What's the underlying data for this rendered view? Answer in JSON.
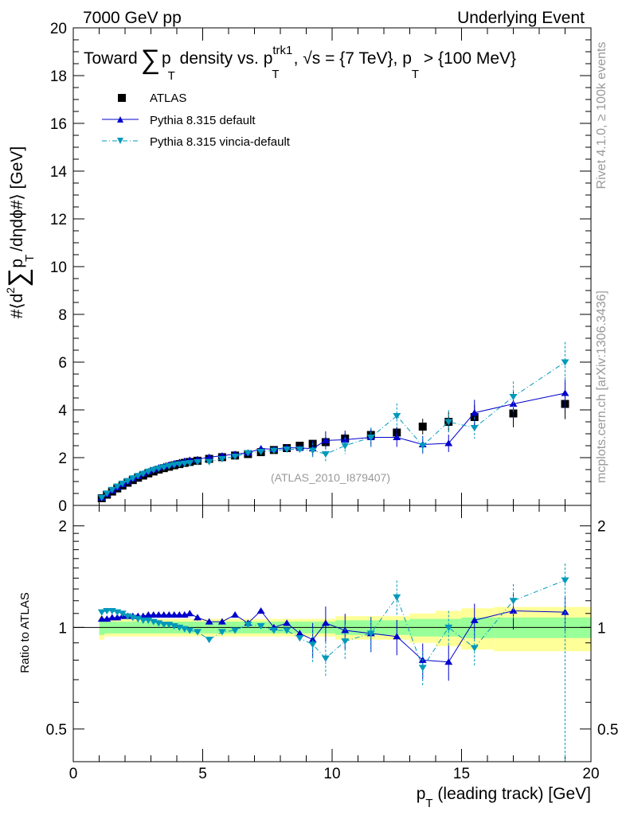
{
  "header": {
    "left": "7000 GeV pp",
    "right": "Underlying Event"
  },
  "title": {
    "prefix": "Toward",
    "sum_symbol": "∑",
    "p": "p",
    "sub_T": "T",
    "mid": " density vs. p",
    "sup_trk1": "trk1",
    "sub_T2": "T",
    "rest": ", √s = {7 TeV}, p",
    "sub_T3": "T",
    "end": " > {100 MeV}"
  },
  "ylabel": {
    "prefix": "#⟨d",
    "sup2": "2",
    "sum_symbol": "∑",
    "p": "p",
    "sub_T": "T",
    "end": "/dηdϕ#⟩ [GeV]"
  },
  "xlabel": {
    "p": "p",
    "sub_T": "T",
    "rest": " (leading track) [GeV]"
  },
  "ratio_ylabel": "Ratio to ATLAS",
  "side_text_top": "Rivet 4.1.0, ≥ 100k events",
  "side_text_bottom": "mcplots.cern.ch [arXiv:1306.3436]",
  "analysis_ref": "(ATLAS_2010_I879407)",
  "colors": {
    "atlas": "#000000",
    "pythia_default": "#0000cc",
    "pythia_vincia": "#0099bb",
    "band_inner": "#99ff99",
    "band_outer": "#ffff99"
  },
  "chart_data": {
    "type": "scatter",
    "main": {
      "xlim": [
        0,
        20
      ],
      "ylim": [
        0,
        20
      ],
      "xticks": [
        "0",
        "5",
        "10",
        "15",
        "20"
      ],
      "yticks": [
        "0",
        "2",
        "4",
        "6",
        "8",
        "10",
        "12",
        "14",
        "16",
        "18",
        "20"
      ]
    },
    "ratio": {
      "ylim": [
        0.4,
        2.3
      ],
      "yticks": [
        "0.5",
        "1",
        "2"
      ],
      "ytick_values": [
        0.5,
        1,
        2
      ]
    },
    "legend_position": "top-left",
    "x": [
      1.1,
      1.3,
      1.5,
      1.7,
      1.9,
      2.1,
      2.3,
      2.5,
      2.7,
      2.9,
      3.1,
      3.3,
      3.5,
      3.7,
      3.9,
      4.1,
      4.3,
      4.5,
      4.8,
      5.25,
      5.75,
      6.25,
      6.75,
      7.25,
      7.75,
      8.25,
      8.75,
      9.25,
      9.75,
      10.5,
      11.5,
      12.5,
      13.5,
      14.5,
      15.5,
      17.0,
      19.0
    ],
    "series": [
      {
        "name": "ATLAS",
        "marker": "square",
        "values": [
          0.3,
          0.45,
          0.58,
          0.71,
          0.83,
          0.95,
          1.06,
          1.16,
          1.25,
          1.34,
          1.42,
          1.5,
          1.56,
          1.62,
          1.68,
          1.73,
          1.78,
          1.82,
          1.87,
          1.95,
          2.02,
          2.09,
          2.15,
          2.23,
          2.32,
          2.4,
          2.5,
          2.58,
          2.65,
          2.8,
          2.95,
          3.05,
          3.3,
          3.5,
          3.7,
          3.85,
          4.25
        ],
        "band_inner": [
          0.95,
          0.96,
          0.96,
          0.96,
          0.96,
          0.96,
          0.96,
          0.96,
          0.96,
          0.96,
          0.96,
          0.96,
          0.96,
          0.96,
          0.96,
          0.96,
          0.96,
          0.96,
          0.96,
          0.96,
          0.96,
          0.96,
          0.96,
          0.96,
          0.96,
          0.96,
          0.96,
          0.96,
          0.96,
          0.95,
          0.95,
          0.95,
          0.94,
          0.94,
          0.93,
          0.93,
          0.93
        ],
        "band_outer": [
          0.92,
          0.94,
          0.94,
          0.94,
          0.94,
          0.94,
          0.94,
          0.94,
          0.94,
          0.94,
          0.94,
          0.94,
          0.94,
          0.94,
          0.94,
          0.94,
          0.94,
          0.94,
          0.94,
          0.94,
          0.94,
          0.94,
          0.94,
          0.94,
          0.94,
          0.94,
          0.94,
          0.94,
          0.94,
          0.92,
          0.92,
          0.92,
          0.9,
          0.88,
          0.86,
          0.85,
          0.85
        ]
      },
      {
        "name": "Pythia 8.315 default",
        "marker": "triangle-up",
        "line": "solid",
        "values": [
          0.32,
          0.47,
          0.62,
          0.75,
          0.88,
          1.0,
          1.12,
          1.22,
          1.33,
          1.42,
          1.5,
          1.58,
          1.64,
          1.7,
          1.76,
          1.81,
          1.86,
          1.9,
          1.93,
          2.02,
          2.08,
          2.15,
          2.2,
          2.38,
          2.35,
          2.42,
          2.4,
          2.38,
          2.72,
          2.75,
          2.85,
          2.85,
          2.55,
          2.6,
          3.88,
          4.25,
          4.7
        ],
        "ratio": [
          1.06,
          1.06,
          1.07,
          1.07,
          1.08,
          1.08,
          1.08,
          1.08,
          1.08,
          1.09,
          1.09,
          1.09,
          1.09,
          1.09,
          1.09,
          1.09,
          1.09,
          1.1,
          1.07,
          1.04,
          1.04,
          1.09,
          1.03,
          1.12,
          1.0,
          1.03,
          0.96,
          0.92,
          1.03,
          0.98,
          0.96,
          0.94,
          0.8,
          0.79,
          1.05,
          1.12,
          1.11
        ]
      },
      {
        "name": "Pythia 8.315 vincia-default",
        "marker": "triangle-down",
        "line": "dashdot",
        "values": [
          0.33,
          0.51,
          0.66,
          0.8,
          0.92,
          1.03,
          1.14,
          1.24,
          1.33,
          1.42,
          1.49,
          1.55,
          1.6,
          1.65,
          1.7,
          1.73,
          1.76,
          1.78,
          1.82,
          1.83,
          1.95,
          2.05,
          2.2,
          2.25,
          2.3,
          2.35,
          2.35,
          2.3,
          2.15,
          2.5,
          2.85,
          3.75,
          2.5,
          3.5,
          3.25,
          4.55,
          6.0
        ],
        "ratio": [
          1.11,
          1.12,
          1.12,
          1.11,
          1.1,
          1.08,
          1.07,
          1.06,
          1.05,
          1.05,
          1.04,
          1.03,
          1.02,
          1.02,
          1.01,
          1.0,
          0.99,
          0.98,
          0.97,
          0.92,
          0.97,
          0.98,
          1.02,
          1.01,
          0.98,
          0.98,
          0.93,
          0.89,
          0.81,
          0.91,
          0.96,
          1.23,
          0.76,
          1.0,
          0.87,
          1.2,
          1.38
        ]
      }
    ]
  }
}
